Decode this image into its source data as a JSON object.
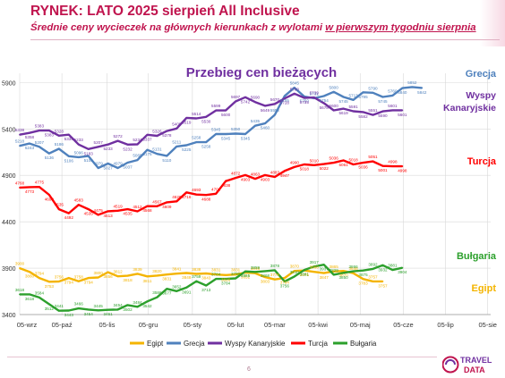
{
  "header": {
    "title": "RYNEK: LATO 2025 sierpień All Inclusive",
    "subtitle_pre": "Średnie ceny wycieczek na głównych kierunkach z wylotami ",
    "subtitle_underlined": "w pierwszym tygodniu sierpnia"
  },
  "footer": {
    "page_number": "6",
    "logo_text_top": "TRAVEL",
    "logo_text_bottom": "DATA"
  },
  "chart_data": {
    "type": "line",
    "title": "Przebieg cen bieżących",
    "xlabel": "",
    "ylabel": "",
    "ylim": [
      3400,
      6000
    ],
    "y_ticks": [
      "3400",
      "3900",
      "4400",
      "4900",
      "5400",
      "5900"
    ],
    "x_ticks": [
      "05-wrz",
      "05-paź",
      "05-lis",
      "05-gru",
      "05-sty",
      "05-lut",
      "05-mar",
      "05-kwi",
      "05-maj",
      "05-cze",
      "05-lip",
      "05-sie"
    ],
    "x_weeks": [
      0,
      4.3,
      8.9,
      13.1,
      17.6,
      22.0,
      26.0,
      30.4,
      34.7,
      39.1,
      43.4,
      47.7
    ],
    "grid": true,
    "legend_position": "bottom",
    "series": [
      {
        "name": "Grecja",
        "color": "#4f81bd",
        "right_label": "Grecja",
        "values": [
          5218,
          5243,
          5207,
          5136,
          5186,
          5106,
          5096,
          5108,
          4979,
          5027,
          4979,
          5037,
          5065,
          5175,
          5131,
          5110,
          5211,
          5225,
          5258,
          5258,
          5345,
          5345,
          5350,
          5345,
          5435,
          5460,
          5552,
          5755,
          5845,
          5750,
          5731,
          5754,
          5800,
          5745,
          5713,
          5795,
          5790,
          5745,
          5760,
          5840,
          5852,
          5842
        ],
        "labels": [
          "5218",
          "5243",
          "5207",
          "5136",
          "5186",
          "5106",
          "5096",
          "5108",
          "4979",
          "5027",
          "4979",
          "5037",
          "5065",
          "5175",
          "5131",
          "5110",
          "5211",
          "5225",
          "5258",
          "5258",
          "5345",
          "5345",
          "5350",
          "5345",
          "5435",
          "5460",
          "5552",
          "5755",
          "5845",
          "5750",
          "5731",
          "5754",
          "5800",
          "5745",
          "5713",
          "5795",
          "5790",
          "5745",
          "5760",
          "5840",
          "5852",
          "5842"
        ]
      },
      {
        "name": "Wyspy Kanaryjskie",
        "color": "#7030a0",
        "right_label": "Wyspy Kanaryjskie",
        "values": [
          5338,
          5358,
          5383,
          5383,
          5328,
          5338,
          5233,
          5183,
          5207,
          5233,
          5272,
          5232,
          5234,
          5337,
          5326,
          5378,
          5405,
          5519,
          5514,
          5530,
          5599,
          5600,
          5697,
          5742,
          5690,
          5649,
          5670,
          5728,
          5780,
          5735,
          5739,
          5678,
          5600,
          5619,
          5591,
          5582,
          5551,
          5590,
          5601,
          5601
        ],
        "labels": [
          "5338",
          "5358",
          "5383",
          "5383",
          "5328",
          "5338",
          "5233",
          "5183",
          "5207",
          "5233",
          "5272",
          "5232",
          "5234",
          "5337",
          "5326",
          "5378",
          "5405",
          "5519",
          "5514",
          "5530",
          "5599",
          "5600",
          "5697",
          "5742",
          "5690",
          "5649",
          "5670",
          "5728",
          "5780",
          "5735",
          "5739",
          "5678",
          "5600",
          "5619",
          "5591",
          "5582",
          "5551",
          "5590",
          "5601",
          "5601"
        ]
      },
      {
        "name": "Turcja",
        "color": "#ff0000",
        "right_label": "Turcja",
        "values": [
          4768,
          4773,
          4775,
          4690,
          4535,
          4492,
          4583,
          4535,
          4475,
          4513,
          4519,
          4535,
          4512,
          4568,
          4567,
          4609,
          4620,
          4716,
          4693,
          4688,
          4702,
          4838,
          4872,
          4903,
          4863,
          4903,
          4883,
          4947,
          4990,
          5018,
          5010,
          5022,
          5036,
          5061,
          5018,
          5036,
          5051,
          5001,
          4998,
          4998
        ],
        "labels": [
          "4768",
          "4773",
          "4775",
          "4690",
          "4535",
          "4492",
          "4583",
          "4535",
          "4475",
          "4513",
          "4519",
          "4535",
          "4512",
          "4568",
          "4567",
          "4609",
          "4620",
          "4716",
          "4693",
          "4688",
          "4702",
          "4838",
          "4872",
          "4903",
          "4863",
          "4903",
          "4883",
          "4947",
          "4990",
          "5018",
          "5010",
          "5022",
          "5036",
          "5061",
          "5018",
          "5036",
          "5051",
          "5001",
          "4998",
          "4998"
        ]
      },
      {
        "name": "Egipt",
        "color": "#f4b400",
        "right_label": "Egipt",
        "values": [
          3900,
          3860,
          3794,
          3753,
          3756,
          3794,
          3758,
          3794,
          3800,
          3856,
          3812,
          3818,
          3839,
          3811,
          3820,
          3831,
          3841,
          3848,
          3838,
          3843,
          3831,
          3826,
          3831,
          3852,
          3846,
          3803,
          3778,
          3794,
          3870,
          3875,
          3860,
          3847,
          3865,
          3870,
          3846,
          3783,
          3757,
          3757
        ],
        "labels": [
          "3900",
          "3860",
          "3794",
          "3753",
          "3756",
          "3794",
          "3758",
          "3794",
          "3800",
          "3856",
          "3812",
          "3818",
          "3839",
          "3811",
          "3820",
          "3831",
          "3841",
          "3848",
          "3838",
          "3843",
          "3831",
          "3826",
          "3831",
          "3852",
          "3846",
          "3803",
          "3778",
          "3794",
          "3870",
          "3875",
          "3860",
          "3847",
          "3865",
          "3870",
          "3846",
          "3783",
          "3757",
          "3757"
        ]
      },
      {
        "name": "Bułgaria",
        "color": "#2ca02c",
        "right_label": "Bułgaria",
        "values": [
          3618,
          3618,
          3584,
          3512,
          3441,
          3443,
          3466,
          3454,
          3445,
          3451,
          3454,
          3502,
          3484,
          3542,
          3586,
          3677,
          3652,
          3691,
          3759,
          3713,
          3784,
          3784,
          3790,
          3865,
          3859,
          3868,
          3878,
          3756,
          3810,
          3881,
          3917,
          3937,
          3829,
          3850,
          3866,
          3875,
          3892,
          3932,
          3881,
          3904
        ],
        "labels": [
          "3618",
          "3618",
          "3584",
          "3512",
          "3441",
          "3443",
          "3466",
          "3454",
          "3445",
          "3451",
          "3454",
          "3502",
          "3484",
          "3542",
          "3586",
          "3677",
          "3652",
          "3691",
          "3759",
          "3713",
          "3784",
          "3784",
          "3790",
          "3865",
          "3859",
          "3868",
          "3878",
          "3756",
          "3810",
          "3881",
          "3917",
          "3937",
          "3829",
          "3850",
          "3866",
          "3875",
          "3892",
          "3932",
          "3881",
          "3904"
        ]
      }
    ]
  }
}
